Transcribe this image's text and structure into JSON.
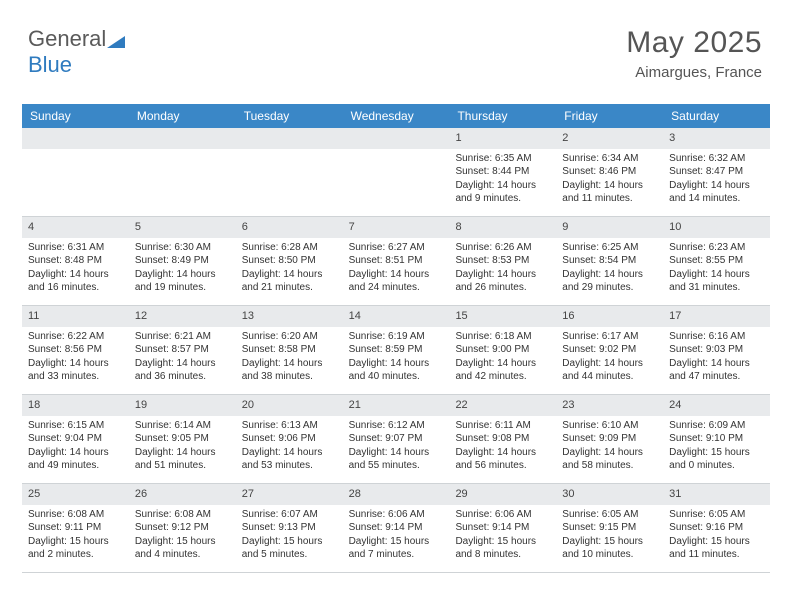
{
  "logo": {
    "text1": "General",
    "text2": "Blue"
  },
  "header": {
    "month_title": "May 2025",
    "location": "Aimargues, France"
  },
  "colors": {
    "header_bar": "#3a87c7",
    "daynum_bg": "#e8eaec",
    "text": "#333333",
    "title_text": "#555555"
  },
  "weekdays": [
    "Sunday",
    "Monday",
    "Tuesday",
    "Wednesday",
    "Thursday",
    "Friday",
    "Saturday"
  ],
  "weeks": [
    [
      {
        "n": "",
        "sunrise": "",
        "sunset": "",
        "daylight": ""
      },
      {
        "n": "",
        "sunrise": "",
        "sunset": "",
        "daylight": ""
      },
      {
        "n": "",
        "sunrise": "",
        "sunset": "",
        "daylight": ""
      },
      {
        "n": "",
        "sunrise": "",
        "sunset": "",
        "daylight": ""
      },
      {
        "n": "1",
        "sunrise": "Sunrise: 6:35 AM",
        "sunset": "Sunset: 8:44 PM",
        "daylight": "Daylight: 14 hours and 9 minutes."
      },
      {
        "n": "2",
        "sunrise": "Sunrise: 6:34 AM",
        "sunset": "Sunset: 8:46 PM",
        "daylight": "Daylight: 14 hours and 11 minutes."
      },
      {
        "n": "3",
        "sunrise": "Sunrise: 6:32 AM",
        "sunset": "Sunset: 8:47 PM",
        "daylight": "Daylight: 14 hours and 14 minutes."
      }
    ],
    [
      {
        "n": "4",
        "sunrise": "Sunrise: 6:31 AM",
        "sunset": "Sunset: 8:48 PM",
        "daylight": "Daylight: 14 hours and 16 minutes."
      },
      {
        "n": "5",
        "sunrise": "Sunrise: 6:30 AM",
        "sunset": "Sunset: 8:49 PM",
        "daylight": "Daylight: 14 hours and 19 minutes."
      },
      {
        "n": "6",
        "sunrise": "Sunrise: 6:28 AM",
        "sunset": "Sunset: 8:50 PM",
        "daylight": "Daylight: 14 hours and 21 minutes."
      },
      {
        "n": "7",
        "sunrise": "Sunrise: 6:27 AM",
        "sunset": "Sunset: 8:51 PM",
        "daylight": "Daylight: 14 hours and 24 minutes."
      },
      {
        "n": "8",
        "sunrise": "Sunrise: 6:26 AM",
        "sunset": "Sunset: 8:53 PM",
        "daylight": "Daylight: 14 hours and 26 minutes."
      },
      {
        "n": "9",
        "sunrise": "Sunrise: 6:25 AM",
        "sunset": "Sunset: 8:54 PM",
        "daylight": "Daylight: 14 hours and 29 minutes."
      },
      {
        "n": "10",
        "sunrise": "Sunrise: 6:23 AM",
        "sunset": "Sunset: 8:55 PM",
        "daylight": "Daylight: 14 hours and 31 minutes."
      }
    ],
    [
      {
        "n": "11",
        "sunrise": "Sunrise: 6:22 AM",
        "sunset": "Sunset: 8:56 PM",
        "daylight": "Daylight: 14 hours and 33 minutes."
      },
      {
        "n": "12",
        "sunrise": "Sunrise: 6:21 AM",
        "sunset": "Sunset: 8:57 PM",
        "daylight": "Daylight: 14 hours and 36 minutes."
      },
      {
        "n": "13",
        "sunrise": "Sunrise: 6:20 AM",
        "sunset": "Sunset: 8:58 PM",
        "daylight": "Daylight: 14 hours and 38 minutes."
      },
      {
        "n": "14",
        "sunrise": "Sunrise: 6:19 AM",
        "sunset": "Sunset: 8:59 PM",
        "daylight": "Daylight: 14 hours and 40 minutes."
      },
      {
        "n": "15",
        "sunrise": "Sunrise: 6:18 AM",
        "sunset": "Sunset: 9:00 PM",
        "daylight": "Daylight: 14 hours and 42 minutes."
      },
      {
        "n": "16",
        "sunrise": "Sunrise: 6:17 AM",
        "sunset": "Sunset: 9:02 PM",
        "daylight": "Daylight: 14 hours and 44 minutes."
      },
      {
        "n": "17",
        "sunrise": "Sunrise: 6:16 AM",
        "sunset": "Sunset: 9:03 PM",
        "daylight": "Daylight: 14 hours and 47 minutes."
      }
    ],
    [
      {
        "n": "18",
        "sunrise": "Sunrise: 6:15 AM",
        "sunset": "Sunset: 9:04 PM",
        "daylight": "Daylight: 14 hours and 49 minutes."
      },
      {
        "n": "19",
        "sunrise": "Sunrise: 6:14 AM",
        "sunset": "Sunset: 9:05 PM",
        "daylight": "Daylight: 14 hours and 51 minutes."
      },
      {
        "n": "20",
        "sunrise": "Sunrise: 6:13 AM",
        "sunset": "Sunset: 9:06 PM",
        "daylight": "Daylight: 14 hours and 53 minutes."
      },
      {
        "n": "21",
        "sunrise": "Sunrise: 6:12 AM",
        "sunset": "Sunset: 9:07 PM",
        "daylight": "Daylight: 14 hours and 55 minutes."
      },
      {
        "n": "22",
        "sunrise": "Sunrise: 6:11 AM",
        "sunset": "Sunset: 9:08 PM",
        "daylight": "Daylight: 14 hours and 56 minutes."
      },
      {
        "n": "23",
        "sunrise": "Sunrise: 6:10 AM",
        "sunset": "Sunset: 9:09 PM",
        "daylight": "Daylight: 14 hours and 58 minutes."
      },
      {
        "n": "24",
        "sunrise": "Sunrise: 6:09 AM",
        "sunset": "Sunset: 9:10 PM",
        "daylight": "Daylight: 15 hours and 0 minutes."
      }
    ],
    [
      {
        "n": "25",
        "sunrise": "Sunrise: 6:08 AM",
        "sunset": "Sunset: 9:11 PM",
        "daylight": "Daylight: 15 hours and 2 minutes."
      },
      {
        "n": "26",
        "sunrise": "Sunrise: 6:08 AM",
        "sunset": "Sunset: 9:12 PM",
        "daylight": "Daylight: 15 hours and 4 minutes."
      },
      {
        "n": "27",
        "sunrise": "Sunrise: 6:07 AM",
        "sunset": "Sunset: 9:13 PM",
        "daylight": "Daylight: 15 hours and 5 minutes."
      },
      {
        "n": "28",
        "sunrise": "Sunrise: 6:06 AM",
        "sunset": "Sunset: 9:14 PM",
        "daylight": "Daylight: 15 hours and 7 minutes."
      },
      {
        "n": "29",
        "sunrise": "Sunrise: 6:06 AM",
        "sunset": "Sunset: 9:14 PM",
        "daylight": "Daylight: 15 hours and 8 minutes."
      },
      {
        "n": "30",
        "sunrise": "Sunrise: 6:05 AM",
        "sunset": "Sunset: 9:15 PM",
        "daylight": "Daylight: 15 hours and 10 minutes."
      },
      {
        "n": "31",
        "sunrise": "Sunrise: 6:05 AM",
        "sunset": "Sunset: 9:16 PM",
        "daylight": "Daylight: 15 hours and 11 minutes."
      }
    ]
  ]
}
